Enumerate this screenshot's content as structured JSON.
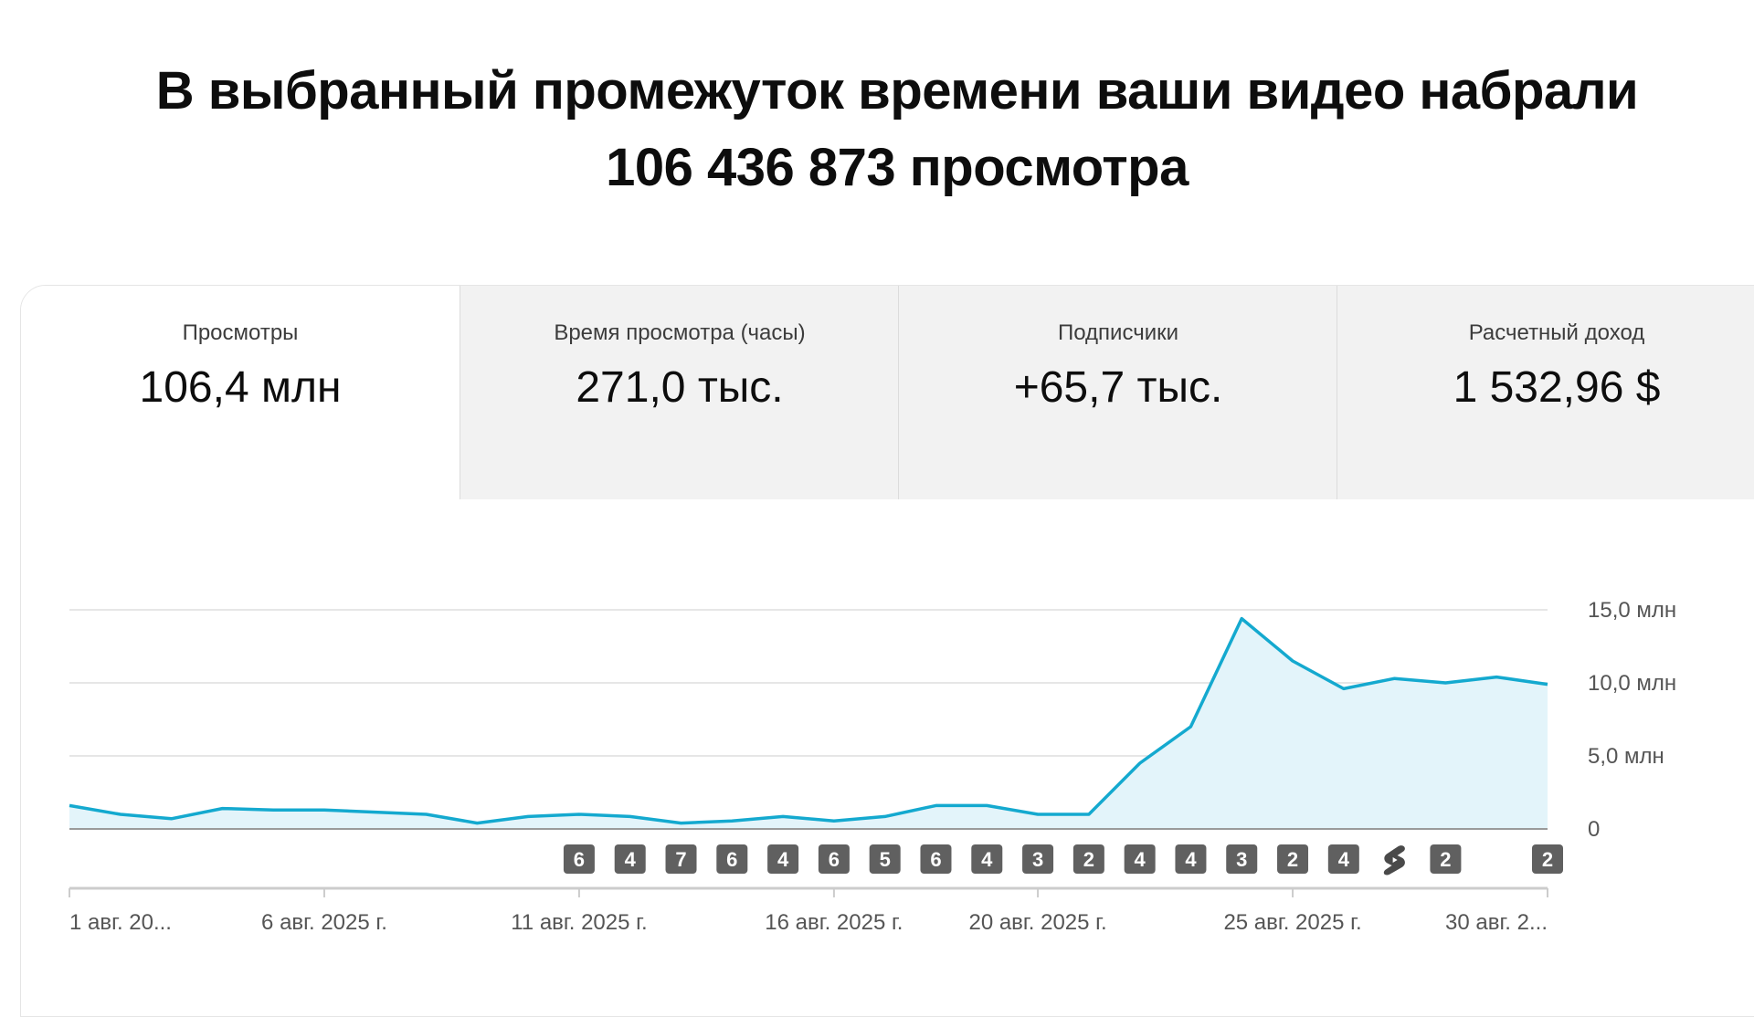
{
  "headline": {
    "line1": "В выбранный промежуток времени ваши видео набрали",
    "line2": "106 436 873 просмотра"
  },
  "tabs": [
    {
      "label": "Просмотры",
      "value": "106,4 млн",
      "active": true
    },
    {
      "label": "Время просмотра (часы)",
      "value": "271,0 тыс.",
      "active": false
    },
    {
      "label": "Подписчики",
      "value": "+65,7 тыс.",
      "active": false
    },
    {
      "label": "Расчетный доход",
      "value": "1 532,96 $",
      "active": false
    }
  ],
  "colors": {
    "line": "#14a9cf",
    "fill": "#e3f4fa",
    "grid": "#e6e6e6",
    "badge": "#606060"
  },
  "chart_data": {
    "type": "area",
    "x": [
      "2025-08-01",
      "2025-08-02",
      "2025-08-03",
      "2025-08-04",
      "2025-08-05",
      "2025-08-06",
      "2025-08-07",
      "2025-08-08",
      "2025-08-09",
      "2025-08-10",
      "2025-08-11",
      "2025-08-12",
      "2025-08-13",
      "2025-08-14",
      "2025-08-15",
      "2025-08-16",
      "2025-08-17",
      "2025-08-18",
      "2025-08-19",
      "2025-08-20",
      "2025-08-21",
      "2025-08-22",
      "2025-08-23",
      "2025-08-24",
      "2025-08-25",
      "2025-08-26",
      "2025-08-27",
      "2025-08-28",
      "2025-08-29",
      "2025-08-30"
    ],
    "series": [
      {
        "values": [
          1.6,
          1.0,
          0.7,
          1.4,
          1.3,
          1.3,
          1.15,
          1.0,
          0.4,
          0.85,
          1.0,
          0.85,
          0.4,
          0.55,
          0.85,
          0.55,
          0.85,
          1.6,
          1.6,
          1.0,
          1.0,
          4.5,
          7.0,
          14.4,
          11.5,
          9.6,
          10.3,
          10.0,
          10.4,
          9.9
        ]
      }
    ],
    "ylim": [
      0,
      15
    ],
    "yticks": [
      0,
      5,
      10,
      15
    ],
    "ytick_labels": [
      "0",
      "5,0 млн",
      "10,0 млн",
      "15,0 млн"
    ],
    "y_axis_position": "right",
    "xtick_labels": [
      {
        "x": "2025-08-01",
        "label": "1 авг. 20..."
      },
      {
        "x": "2025-08-06",
        "label": "6 авг. 2025 г."
      },
      {
        "x": "2025-08-11",
        "label": "11 авг. 2025 г."
      },
      {
        "x": "2025-08-16",
        "label": "16 авг. 2025 г."
      },
      {
        "x": "2025-08-20",
        "label": "20 авг. 2025 г."
      },
      {
        "x": "2025-08-25",
        "label": "25 авг. 2025 г."
      },
      {
        "x": "2025-08-30",
        "label": "30 авг. 2..."
      }
    ],
    "grid": true,
    "publication_markers": [
      {
        "x": "2025-08-11",
        "label": "6"
      },
      {
        "x": "2025-08-12",
        "label": "4"
      },
      {
        "x": "2025-08-13",
        "label": "7"
      },
      {
        "x": "2025-08-14",
        "label": "6"
      },
      {
        "x": "2025-08-15",
        "label": "4"
      },
      {
        "x": "2025-08-16",
        "label": "6"
      },
      {
        "x": "2025-08-17",
        "label": "5"
      },
      {
        "x": "2025-08-18",
        "label": "6"
      },
      {
        "x": "2025-08-19",
        "label": "4"
      },
      {
        "x": "2025-08-20",
        "label": "3"
      },
      {
        "x": "2025-08-21",
        "label": "2"
      },
      {
        "x": "2025-08-22",
        "label": "4"
      },
      {
        "x": "2025-08-23",
        "label": "4"
      },
      {
        "x": "2025-08-24",
        "label": "3"
      },
      {
        "x": "2025-08-25",
        "label": "2"
      },
      {
        "x": "2025-08-26",
        "label": "4"
      },
      {
        "x": "2025-08-27",
        "icon": "shorts-icon"
      },
      {
        "x": "2025-08-28",
        "label": "2"
      },
      {
        "x": "2025-08-30",
        "label": "2"
      }
    ]
  }
}
